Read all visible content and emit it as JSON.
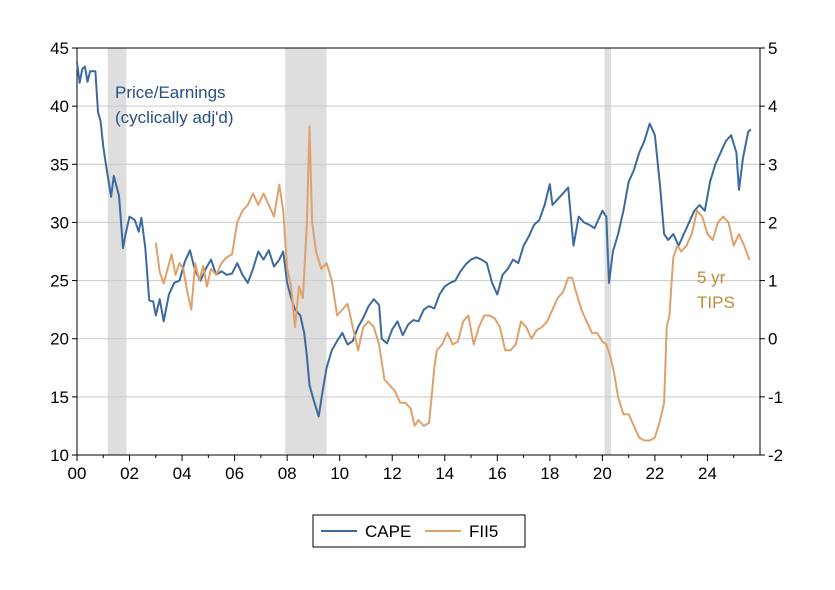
{
  "chart_data": {
    "type": "line",
    "x_range": [
      2000.0,
      2026.0
    ],
    "x_ticks": [
      "00",
      "02",
      "04",
      "06",
      "08",
      "10",
      "12",
      "14",
      "16",
      "18",
      "20",
      "22",
      "24"
    ],
    "left_axis": {
      "ylim": [
        10,
        45
      ],
      "ticks": [
        "10",
        "15",
        "20",
        "25",
        "30",
        "35",
        "40",
        "45"
      ]
    },
    "right_axis": {
      "ylim": [
        -2,
        5
      ],
      "ticks": [
        "-2",
        "-1",
        "0",
        "1",
        "2",
        "3",
        "4",
        "5"
      ]
    },
    "grid": true,
    "legend_position": "bottom-center",
    "recessions": [
      {
        "start": 2001.17,
        "end": 2001.88
      },
      {
        "start": 2007.92,
        "end": 2009.5
      },
      {
        "start": 2020.08,
        "end": 2020.33
      }
    ],
    "annotations": [
      {
        "lines": [
          "Price/Earnings",
          "(cyclically adj'd)"
        ],
        "color": "#2a4f82"
      },
      {
        "lines": [
          "5 yr",
          "TIPS"
        ],
        "color": "#c08a3a"
      }
    ],
    "series": [
      {
        "name": "CAPE",
        "axis": "left",
        "color": "#3d6a9e",
        "points": [
          [
            2000.0,
            43.8
          ],
          [
            2000.1,
            42.0
          ],
          [
            2000.2,
            43.2
          ],
          [
            2000.3,
            43.4
          ],
          [
            2000.4,
            42.1
          ],
          [
            2000.5,
            43.0
          ],
          [
            2000.7,
            43.0
          ],
          [
            2000.8,
            39.5
          ],
          [
            2000.9,
            38.7
          ],
          [
            2001.0,
            36.5
          ],
          [
            2001.1,
            35.0
          ],
          [
            2001.3,
            32.2
          ],
          [
            2001.4,
            34.0
          ],
          [
            2001.6,
            32.3
          ],
          [
            2001.75,
            27.8
          ],
          [
            2001.85,
            29.0
          ],
          [
            2002.0,
            30.5
          ],
          [
            2002.2,
            30.2
          ],
          [
            2002.35,
            29.2
          ],
          [
            2002.45,
            30.4
          ],
          [
            2002.6,
            27.8
          ],
          [
            2002.75,
            23.3
          ],
          [
            2002.9,
            23.2
          ],
          [
            2003.0,
            22.0
          ],
          [
            2003.15,
            23.4
          ],
          [
            2003.3,
            21.5
          ],
          [
            2003.5,
            23.8
          ],
          [
            2003.7,
            24.8
          ],
          [
            2003.9,
            25.0
          ],
          [
            2004.1,
            26.6
          ],
          [
            2004.3,
            27.6
          ],
          [
            2004.5,
            25.8
          ],
          [
            2004.7,
            25.0
          ],
          [
            2004.9,
            26.0
          ],
          [
            2005.1,
            26.8
          ],
          [
            2005.3,
            25.5
          ],
          [
            2005.5,
            25.8
          ],
          [
            2005.7,
            25.5
          ],
          [
            2005.9,
            25.6
          ],
          [
            2006.1,
            26.5
          ],
          [
            2006.3,
            25.5
          ],
          [
            2006.5,
            24.8
          ],
          [
            2006.7,
            26.0
          ],
          [
            2006.9,
            27.5
          ],
          [
            2007.1,
            26.8
          ],
          [
            2007.3,
            27.6
          ],
          [
            2007.5,
            26.2
          ],
          [
            2007.7,
            26.8
          ],
          [
            2007.85,
            27.5
          ],
          [
            2008.0,
            24.8
          ],
          [
            2008.15,
            23.5
          ],
          [
            2008.3,
            22.5
          ],
          [
            2008.5,
            22.0
          ],
          [
            2008.65,
            20.5
          ],
          [
            2008.75,
            18.5
          ],
          [
            2008.85,
            16.0
          ],
          [
            2009.0,
            14.8
          ],
          [
            2009.2,
            13.3
          ],
          [
            2009.35,
            15.5
          ],
          [
            2009.5,
            17.5
          ],
          [
            2009.7,
            19.0
          ],
          [
            2009.9,
            19.8
          ],
          [
            2010.1,
            20.5
          ],
          [
            2010.3,
            19.5
          ],
          [
            2010.5,
            19.8
          ],
          [
            2010.7,
            21.0
          ],
          [
            2010.9,
            21.8
          ],
          [
            2011.1,
            22.8
          ],
          [
            2011.3,
            23.4
          ],
          [
            2011.5,
            22.9
          ],
          [
            2011.6,
            20.0
          ],
          [
            2011.8,
            19.6
          ],
          [
            2012.0,
            20.8
          ],
          [
            2012.2,
            21.5
          ],
          [
            2012.4,
            20.3
          ],
          [
            2012.6,
            21.2
          ],
          [
            2012.8,
            21.6
          ],
          [
            2013.0,
            21.5
          ],
          [
            2013.2,
            22.5
          ],
          [
            2013.4,
            22.8
          ],
          [
            2013.6,
            22.6
          ],
          [
            2013.8,
            23.8
          ],
          [
            2014.0,
            24.5
          ],
          [
            2014.2,
            24.8
          ],
          [
            2014.4,
            25.0
          ],
          [
            2014.6,
            25.8
          ],
          [
            2014.8,
            26.4
          ],
          [
            2015.0,
            26.8
          ],
          [
            2015.2,
            27.0
          ],
          [
            2015.4,
            26.8
          ],
          [
            2015.6,
            26.5
          ],
          [
            2015.8,
            24.8
          ],
          [
            2016.0,
            23.8
          ],
          [
            2016.2,
            25.5
          ],
          [
            2016.4,
            26.0
          ],
          [
            2016.6,
            26.8
          ],
          [
            2016.8,
            26.5
          ],
          [
            2017.0,
            28.0
          ],
          [
            2017.2,
            28.8
          ],
          [
            2017.4,
            29.8
          ],
          [
            2017.6,
            30.2
          ],
          [
            2017.8,
            31.5
          ],
          [
            2018.0,
            33.3
          ],
          [
            2018.1,
            31.5
          ],
          [
            2018.3,
            32.0
          ],
          [
            2018.5,
            32.5
          ],
          [
            2018.7,
            33.0
          ],
          [
            2018.9,
            28.0
          ],
          [
            2019.1,
            30.5
          ],
          [
            2019.3,
            30.0
          ],
          [
            2019.5,
            29.8
          ],
          [
            2019.7,
            29.5
          ],
          [
            2019.9,
            30.5
          ],
          [
            2020.0,
            31.0
          ],
          [
            2020.15,
            30.5
          ],
          [
            2020.25,
            24.8
          ],
          [
            2020.4,
            27.5
          ],
          [
            2020.6,
            29.0
          ],
          [
            2020.8,
            31.0
          ],
          [
            2021.0,
            33.5
          ],
          [
            2021.2,
            34.5
          ],
          [
            2021.4,
            36.0
          ],
          [
            2021.6,
            37.0
          ],
          [
            2021.8,
            38.5
          ],
          [
            2022.0,
            37.5
          ],
          [
            2022.2,
            33.0
          ],
          [
            2022.35,
            29.0
          ],
          [
            2022.5,
            28.5
          ],
          [
            2022.7,
            29.0
          ],
          [
            2022.9,
            28.0
          ],
          [
            2023.1,
            29.0
          ],
          [
            2023.3,
            30.0
          ],
          [
            2023.5,
            31.0
          ],
          [
            2023.7,
            31.5
          ],
          [
            2023.9,
            31.0
          ],
          [
            2024.1,
            33.5
          ],
          [
            2024.3,
            35.0
          ],
          [
            2024.5,
            36.0
          ],
          [
            2024.7,
            37.0
          ],
          [
            2024.9,
            37.5
          ],
          [
            2025.1,
            36.0
          ],
          [
            2025.2,
            32.8
          ],
          [
            2025.35,
            35.5
          ],
          [
            2025.55,
            37.8
          ],
          [
            2025.65,
            38.0
          ]
        ]
      },
      {
        "name": "FII5",
        "axis": "right",
        "color": "#e0a06a",
        "points": [
          [
            2003.0,
            1.65
          ],
          [
            2003.15,
            1.15
          ],
          [
            2003.3,
            0.95
          ],
          [
            2003.45,
            1.2
          ],
          [
            2003.6,
            1.45
          ],
          [
            2003.75,
            1.1
          ],
          [
            2003.9,
            1.3
          ],
          [
            2004.05,
            1.2
          ],
          [
            2004.2,
            0.8
          ],
          [
            2004.35,
            0.5
          ],
          [
            2004.5,
            1.3
          ],
          [
            2004.65,
            1.0
          ],
          [
            2004.8,
            1.25
          ],
          [
            2004.95,
            0.9
          ],
          [
            2005.1,
            1.2
          ],
          [
            2005.3,
            1.1
          ],
          [
            2005.5,
            1.3
          ],
          [
            2005.7,
            1.4
          ],
          [
            2005.9,
            1.45
          ],
          [
            2006.1,
            2.0
          ],
          [
            2006.3,
            2.2
          ],
          [
            2006.5,
            2.3
          ],
          [
            2006.7,
            2.5
          ],
          [
            2006.9,
            2.3
          ],
          [
            2007.1,
            2.5
          ],
          [
            2007.3,
            2.3
          ],
          [
            2007.5,
            2.1
          ],
          [
            2007.7,
            2.65
          ],
          [
            2007.85,
            2.2
          ],
          [
            2008.0,
            1.2
          ],
          [
            2008.15,
            0.9
          ],
          [
            2008.3,
            0.2
          ],
          [
            2008.45,
            0.9
          ],
          [
            2008.6,
            0.7
          ],
          [
            2008.75,
            2.0
          ],
          [
            2008.85,
            3.65
          ],
          [
            2008.95,
            2.0
          ],
          [
            2009.1,
            1.5
          ],
          [
            2009.3,
            1.2
          ],
          [
            2009.5,
            1.3
          ],
          [
            2009.7,
            1.0
          ],
          [
            2009.9,
            0.4
          ],
          [
            2010.1,
            0.5
          ],
          [
            2010.3,
            0.6
          ],
          [
            2010.5,
            0.2
          ],
          [
            2010.7,
            -0.2
          ],
          [
            2010.9,
            0.2
          ],
          [
            2011.1,
            0.3
          ],
          [
            2011.3,
            0.2
          ],
          [
            2011.5,
            -0.1
          ],
          [
            2011.7,
            -0.7
          ],
          [
            2011.9,
            -0.8
          ],
          [
            2012.1,
            -0.9
          ],
          [
            2012.3,
            -1.1
          ],
          [
            2012.5,
            -1.1
          ],
          [
            2012.7,
            -1.2
          ],
          [
            2012.85,
            -1.5
          ],
          [
            2013.0,
            -1.4
          ],
          [
            2013.2,
            -1.5
          ],
          [
            2013.4,
            -1.45
          ],
          [
            2013.5,
            -1.0
          ],
          [
            2013.6,
            -0.5
          ],
          [
            2013.7,
            -0.2
          ],
          [
            2013.9,
            -0.1
          ],
          [
            2014.1,
            0.1
          ],
          [
            2014.3,
            -0.1
          ],
          [
            2014.5,
            -0.05
          ],
          [
            2014.7,
            0.3
          ],
          [
            2014.9,
            0.4
          ],
          [
            2015.1,
            -0.1
          ],
          [
            2015.3,
            0.2
          ],
          [
            2015.5,
            0.4
          ],
          [
            2015.7,
            0.4
          ],
          [
            2015.9,
            0.35
          ],
          [
            2016.1,
            0.2
          ],
          [
            2016.3,
            -0.2
          ],
          [
            2016.5,
            -0.2
          ],
          [
            2016.7,
            -0.1
          ],
          [
            2016.9,
            0.3
          ],
          [
            2017.1,
            0.2
          ],
          [
            2017.3,
            0.0
          ],
          [
            2017.5,
            0.15
          ],
          [
            2017.7,
            0.2
          ],
          [
            2017.9,
            0.3
          ],
          [
            2018.1,
            0.5
          ],
          [
            2018.3,
            0.7
          ],
          [
            2018.5,
            0.8
          ],
          [
            2018.7,
            1.05
          ],
          [
            2018.85,
            1.05
          ],
          [
            2019.0,
            0.8
          ],
          [
            2019.2,
            0.5
          ],
          [
            2019.4,
            0.3
          ],
          [
            2019.6,
            0.1
          ],
          [
            2019.8,
            0.1
          ],
          [
            2020.0,
            -0.05
          ],
          [
            2020.15,
            -0.1
          ],
          [
            2020.3,
            -0.3
          ],
          [
            2020.45,
            -0.6
          ],
          [
            2020.6,
            -1.0
          ],
          [
            2020.8,
            -1.3
          ],
          [
            2021.0,
            -1.3
          ],
          [
            2021.2,
            -1.5
          ],
          [
            2021.4,
            -1.7
          ],
          [
            2021.6,
            -1.75
          ],
          [
            2021.8,
            -1.75
          ],
          [
            2022.0,
            -1.7
          ],
          [
            2022.2,
            -1.4
          ],
          [
            2022.35,
            -1.1
          ],
          [
            2022.45,
            0.2
          ],
          [
            2022.55,
            0.4
          ],
          [
            2022.7,
            1.4
          ],
          [
            2022.85,
            1.6
          ],
          [
            2023.0,
            1.5
          ],
          [
            2023.2,
            1.6
          ],
          [
            2023.4,
            1.8
          ],
          [
            2023.6,
            2.2
          ],
          [
            2023.8,
            2.1
          ],
          [
            2024.0,
            1.8
          ],
          [
            2024.2,
            1.7
          ],
          [
            2024.4,
            2.0
          ],
          [
            2024.6,
            2.1
          ],
          [
            2024.8,
            2.0
          ],
          [
            2025.0,
            1.6
          ],
          [
            2025.2,
            1.8
          ],
          [
            2025.4,
            1.6
          ],
          [
            2025.6,
            1.35
          ]
        ]
      }
    ]
  }
}
